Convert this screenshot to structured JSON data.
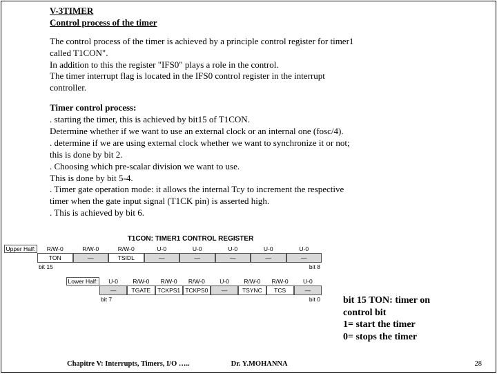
{
  "title": {
    "line1": "V-3TIMER",
    "line2": "Control process of the timer"
  },
  "paragraph1": [
    "The control process of the timer is achieved by a principle control register for timer1",
    "called T1CON\".",
    "In addition to this the register \"IFS0\" plays a role in the control.",
    "The timer interrupt flag is located in the IFS0 control register in the interrupt",
    "controller."
  ],
  "paragraph2": [
    "Timer control process:",
    ". starting the timer, this is achieved by bit15 of T1CON.",
    "Determine whether if we want to use an external clock or an internal one (fosc/4).",
    ". determine if we are using external clock whether we want to synchronize it or not;",
    "this is done by bit 2.",
    ". Choosing which pre-scalar division we want to use.",
    "This is done by bit 5-4.",
    ". Timer gate operation mode: it allows the internal Tcy to increment the respective",
    "timer when the gate input signal (T1CK pin) is asserted high.",
    ". This is achieved by bit 6."
  ],
  "register": {
    "title": "T1CON: TIMER1 CONTROL REGISTER",
    "upper": {
      "label": "Upper Half:",
      "rw": [
        "R/W-0",
        "R/W-0",
        "R/W-0",
        "U-0",
        "U-0",
        "U-0",
        "U-0",
        "U-0"
      ],
      "names": [
        "TON",
        "—",
        "TSIDL",
        "—",
        "—",
        "—",
        "—",
        "—"
      ],
      "shade": [
        false,
        true,
        false,
        true,
        true,
        true,
        true,
        true
      ],
      "bitL": "bit 15",
      "bitR": "bit 8"
    },
    "lower": {
      "label": "Lower Half:",
      "rw": [
        "U-0",
        "R/W-0",
        "R/W-0",
        "R/W-0",
        "U-0",
        "R/W-0",
        "R/W-0",
        "U-0"
      ],
      "names": [
        "—",
        "TGATE",
        "TCKPS1",
        "TCKPS0",
        "—",
        "TSYNC",
        "TCS",
        "—"
      ],
      "shade": [
        true,
        false,
        false,
        false,
        true,
        false,
        false,
        true
      ],
      "bitL": "bit 7",
      "bitR": "bit 0"
    }
  },
  "annotation": {
    "l1": "bit 15  TON: timer on",
    "l2": "control bit",
    "l3": "1= start the timer",
    "l4": "0= stops the timer"
  },
  "footer": {
    "chapter": "Chapitre V: Interrupts, Timers, I/O …..",
    "author": "Dr. Y.MOHANNA",
    "page": "28"
  }
}
